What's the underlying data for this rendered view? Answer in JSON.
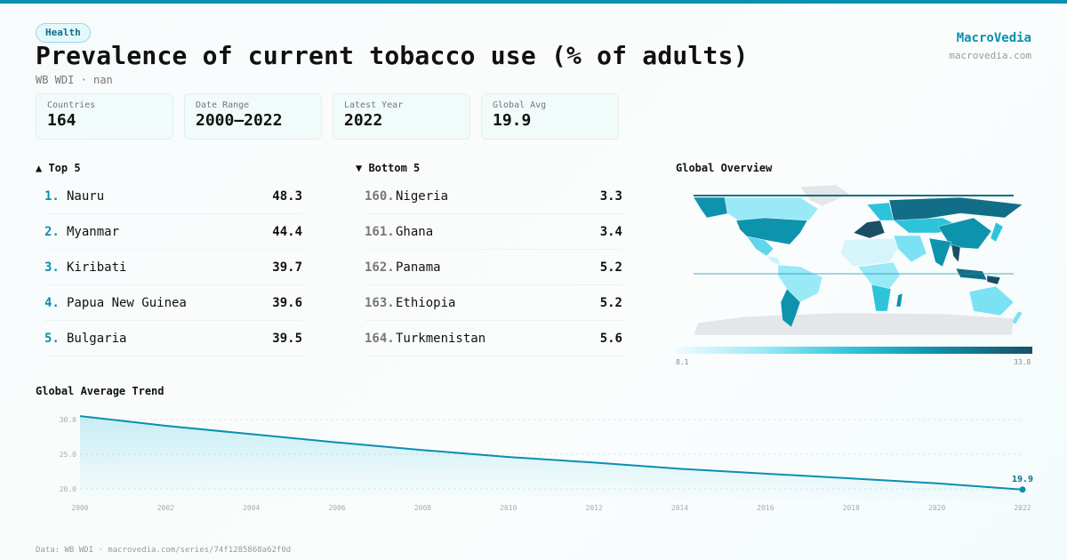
{
  "tag": "Health",
  "title": "Prevalence of current tobacco use (% of adults)",
  "subtitle": "WB WDI · nan",
  "brand": {
    "name": "MacroVedia",
    "url": "macrovedia.com"
  },
  "stats": [
    {
      "label": "Countries",
      "value": "164"
    },
    {
      "label": "Date Range",
      "value": "2000–2022"
    },
    {
      "label": "Latest Year",
      "value": "2022"
    },
    {
      "label": "Global Avg",
      "value": "19.9"
    }
  ],
  "top5": {
    "title": "▲ Top 5",
    "items": [
      {
        "rank": "1.",
        "name": "Nauru",
        "value": "48.3"
      },
      {
        "rank": "2.",
        "name": "Myanmar",
        "value": "44.4"
      },
      {
        "rank": "3.",
        "name": "Kiribati",
        "value": "39.7"
      },
      {
        "rank": "4.",
        "name": "Papua New Guinea",
        "value": "39.6"
      },
      {
        "rank": "5.",
        "name": "Bulgaria",
        "value": "39.5"
      }
    ]
  },
  "bottom5": {
    "title": "▼ Bottom 5",
    "items": [
      {
        "rank": "160.",
        "name": "Nigeria",
        "value": "3.3"
      },
      {
        "rank": "161.",
        "name": "Ghana",
        "value": "3.4"
      },
      {
        "rank": "162.",
        "name": "Panama",
        "value": "5.2"
      },
      {
        "rank": "163.",
        "name": "Ethiopia",
        "value": "5.2"
      },
      {
        "rank": "164.",
        "name": "Turkmenistan",
        "value": "5.6"
      }
    ]
  },
  "map": {
    "title": "Global Overview",
    "scale_min": "8.1",
    "scale_max": "33.8",
    "colors": {
      "low": "#eefbfe",
      "mid": "#2dc3db",
      "high": "#1a4f66",
      "nodata": "#e4e6e9"
    }
  },
  "trend": {
    "title": "Global Average Trend",
    "last_label": "19.9"
  },
  "chart_data": {
    "type": "area",
    "title": "Global Average Trend",
    "x": [
      2000,
      2002,
      2004,
      2006,
      2008,
      2010,
      2012,
      2014,
      2016,
      2018,
      2020,
      2022
    ],
    "values": [
      30.5,
      29.1,
      27.9,
      26.7,
      25.6,
      24.6,
      23.8,
      22.9,
      22.2,
      21.5,
      20.8,
      19.9
    ],
    "yticks": [
      "20.0",
      "25.0",
      "30.0"
    ],
    "xticks": [
      "2000",
      "2002",
      "2004",
      "2006",
      "2008",
      "2010",
      "2012",
      "2014",
      "2016",
      "2018",
      "2020",
      "2022"
    ],
    "ylim": [
      20,
      30
    ],
    "grid": true,
    "color": "#0a8fb0"
  },
  "footer": "Data: WB WDI · macrovedia.com/series/74f1285868a62f0d"
}
